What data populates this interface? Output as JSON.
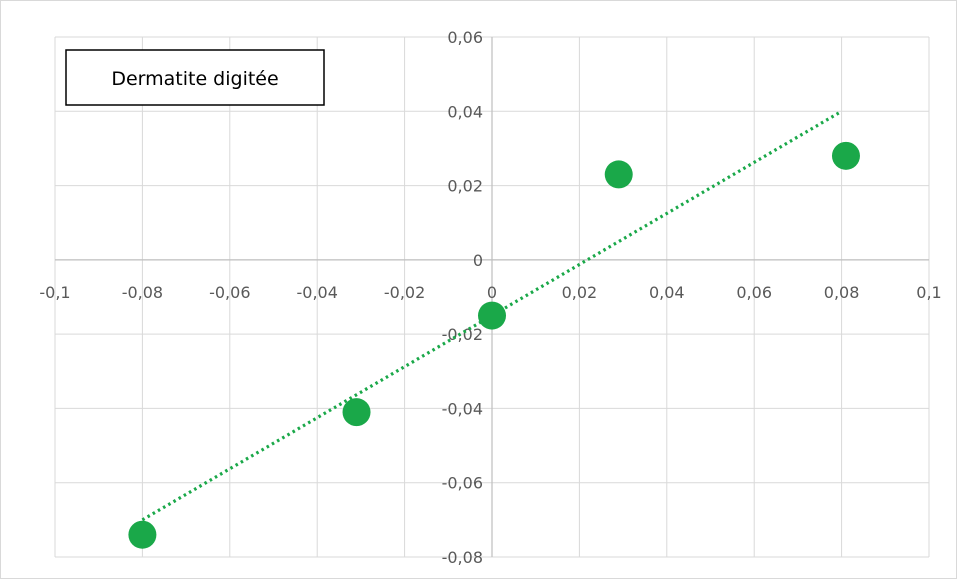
{
  "chart_data": {
    "type": "scatter",
    "title": "Dermatite digitée",
    "xlim": [
      -0.1,
      0.1
    ],
    "ylim": [
      -0.08,
      0.06
    ],
    "x_ticks": [
      -0.1,
      -0.08,
      -0.06,
      -0.04,
      -0.02,
      0,
      0.02,
      0.04,
      0.06,
      0.08,
      0.1
    ],
    "y_ticks": [
      -0.08,
      -0.06,
      -0.04,
      -0.02,
      0,
      0.02,
      0.04,
      0.06
    ],
    "x_tick_labels": [
      "-0,1",
      "-0,08",
      "-0,06",
      "-0,04",
      "-0,02",
      "0",
      "0,02",
      "0,04",
      "0,06",
      "0,08",
      "0,1"
    ],
    "y_tick_labels": [
      "-0,08",
      "-0,06",
      "-0,04",
      "-0,02",
      "0",
      "0,02",
      "0,04",
      "0,06"
    ],
    "grid": true,
    "legend": "none",
    "series": [
      {
        "points": [
          {
            "x": -0.08,
            "y": -0.074
          },
          {
            "x": -0.031,
            "y": -0.041
          },
          {
            "x": 0,
            "y": -0.015
          },
          {
            "x": 0.029,
            "y": 0.023
          },
          {
            "x": 0.081,
            "y": 0.028
          }
        ],
        "color": "#1aa849"
      }
    ],
    "trendline": {
      "type": "linear",
      "style": "dotted",
      "color": "#1aa849",
      "from": {
        "x": -0.08,
        "y": -0.07
      },
      "to": {
        "x": 0.08,
        "y": 0.04
      }
    }
  }
}
